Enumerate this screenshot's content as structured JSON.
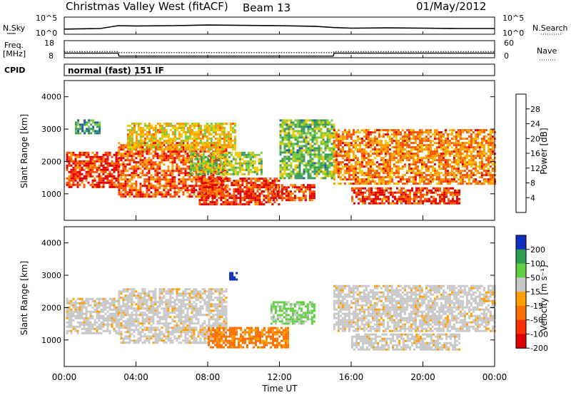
{
  "header": {
    "station": "Christmas Valley West (fitACF)",
    "beam": "Beam 13",
    "date": "01/May/2012"
  },
  "top_panels": {
    "nsky_label": "N.Sky",
    "nsky_ticks": [
      "10^5",
      "10^0"
    ],
    "nsearch_label": "N.Search",
    "nsearch_ticks": [
      "10^5",
      "10^0"
    ],
    "freq_label_1": "Freq.",
    "freq_label_2": "[MHz]",
    "freq_ticks": [
      "18",
      "8"
    ],
    "nave_label": "Nave",
    "nave_ticks": [
      "60",
      "0"
    ],
    "cpid_label": "CPID",
    "cpid_value": "normal (fast) 151 IF"
  },
  "power_panel": {
    "ylabel": "Slant Range [km]",
    "yticks": [
      "4000",
      "3000",
      "2000",
      "1000"
    ],
    "colorbar_label": "Power [dB]",
    "colorbar_ticks": [
      "28",
      "24",
      "20",
      "16",
      "12",
      "8",
      "4"
    ]
  },
  "velocity_panel": {
    "ylabel": "Slant Range [km]",
    "yticks": [
      "4000",
      "3000",
      "2000",
      "1000"
    ],
    "colorbar_label": "Velocity [m s⁻¹]",
    "colorbar_ticks": [
      "200",
      "100",
      "50",
      "15",
      "-15",
      "-50",
      "-100",
      "-200"
    ]
  },
  "xaxis": {
    "label": "Time UT",
    "ticks": [
      "00:00",
      "04:00",
      "08:00",
      "12:00",
      "16:00",
      "20:00",
      "00:00"
    ]
  },
  "colors": {
    "power_scale": [
      "#e00000",
      "#ff5000",
      "#ff9a00",
      "#f5c800",
      "#7ccc3a",
      "#3c9c5c",
      "#2060a0",
      "#0010e0"
    ],
    "velocity_scale": [
      "#1030c0",
      "#30a050",
      "#60d040",
      "#c8c8c8",
      "#ffa000",
      "#ff7000",
      "#ff3000",
      "#e00000"
    ]
  },
  "chart_data": [
    {
      "type": "line",
      "name": "N.Sky",
      "x_hours": [
        0,
        2,
        3,
        4,
        6,
        8,
        10,
        12,
        14,
        15,
        16,
        18,
        20,
        22,
        24
      ],
      "y_log10": [
        1.4,
        1.6,
        2.5,
        2.4,
        2.5,
        2.7,
        2.6,
        2.5,
        2.3,
        1.9,
        1.7,
        1.8,
        1.7,
        1.6,
        1.6
      ],
      "ylim": [
        0,
        5
      ]
    },
    {
      "type": "line",
      "name": "Freq.",
      "x_hours": [
        0,
        3,
        3.05,
        15,
        15.05,
        24
      ],
      "y_mhz": [
        10.5,
        10.5,
        8.6,
        8.6,
        10.5,
        10.5
      ],
      "ylim": [
        8,
        18
      ]
    },
    {
      "type": "line",
      "name": "Nave",
      "x_hours": [
        0,
        3,
        3.05,
        15,
        15.05,
        24
      ],
      "y": [
        21,
        21,
        17,
        17,
        21,
        21
      ],
      "ylim": [
        0,
        60
      ]
    },
    {
      "type": "heatmap",
      "name": "Power",
      "x_range_hours": [
        0,
        24
      ],
      "y_range_km": [
        180,
        4500
      ],
      "unit": "dB",
      "scale": [
        0,
        30
      ],
      "regions": [
        {
          "t0": 0.1,
          "t1": 3.0,
          "r0": 1200,
          "r1": 2300,
          "power": 26
        },
        {
          "t0": 0.6,
          "t1": 2.0,
          "r0": 2900,
          "r1": 3300,
          "power": 10
        },
        {
          "t0": 3.0,
          "t1": 9.0,
          "r0": 900,
          "r1": 2600,
          "power": 24
        },
        {
          "t0": 3.5,
          "t1": 9.5,
          "r0": 2400,
          "r1": 3200,
          "power": 18
        },
        {
          "t0": 7.0,
          "t1": 11.0,
          "r0": 1600,
          "r1": 2300,
          "power": 14
        },
        {
          "t0": 7.5,
          "t1": 12.0,
          "r0": 700,
          "r1": 1500,
          "power": 26
        },
        {
          "t0": 11.5,
          "t1": 14.0,
          "r0": 800,
          "r1": 1300,
          "power": 26
        },
        {
          "t0": 12.0,
          "t1": 15.0,
          "r0": 1500,
          "r1": 3300,
          "power": 12
        },
        {
          "t0": 15.0,
          "t1": 24.0,
          "r0": 1300,
          "r1": 3000,
          "power": 22
        },
        {
          "t0": 16.0,
          "t1": 22.0,
          "r0": 700,
          "r1": 1200,
          "power": 26
        }
      ]
    },
    {
      "type": "heatmap",
      "name": "Velocity",
      "x_range_hours": [
        0,
        24
      ],
      "y_range_km": [
        180,
        4500
      ],
      "unit": "m s^-1",
      "scale": [
        -200,
        200
      ],
      "regions": [
        {
          "t0": 0.1,
          "t1": 3.0,
          "r0": 1200,
          "r1": 2300,
          "velocity": 0
        },
        {
          "t0": 3.0,
          "t1": 9.0,
          "r0": 900,
          "r1": 2600,
          "velocity": 0
        },
        {
          "t0": 8.0,
          "t1": 12.5,
          "r0": 800,
          "r1": 1400,
          "velocity": -40
        },
        {
          "t0": 11.5,
          "t1": 14.0,
          "r0": 1500,
          "r1": 2200,
          "velocity": 40
        },
        {
          "t0": 9.2,
          "t1": 9.6,
          "r0": 2850,
          "r1": 3100,
          "velocity": 200
        },
        {
          "t0": 15.0,
          "t1": 24.0,
          "r0": 1300,
          "r1": 2700,
          "velocity": 0
        },
        {
          "t0": 16.0,
          "t1": 22.0,
          "r0": 700,
          "r1": 1200,
          "velocity": 0
        }
      ]
    }
  ]
}
